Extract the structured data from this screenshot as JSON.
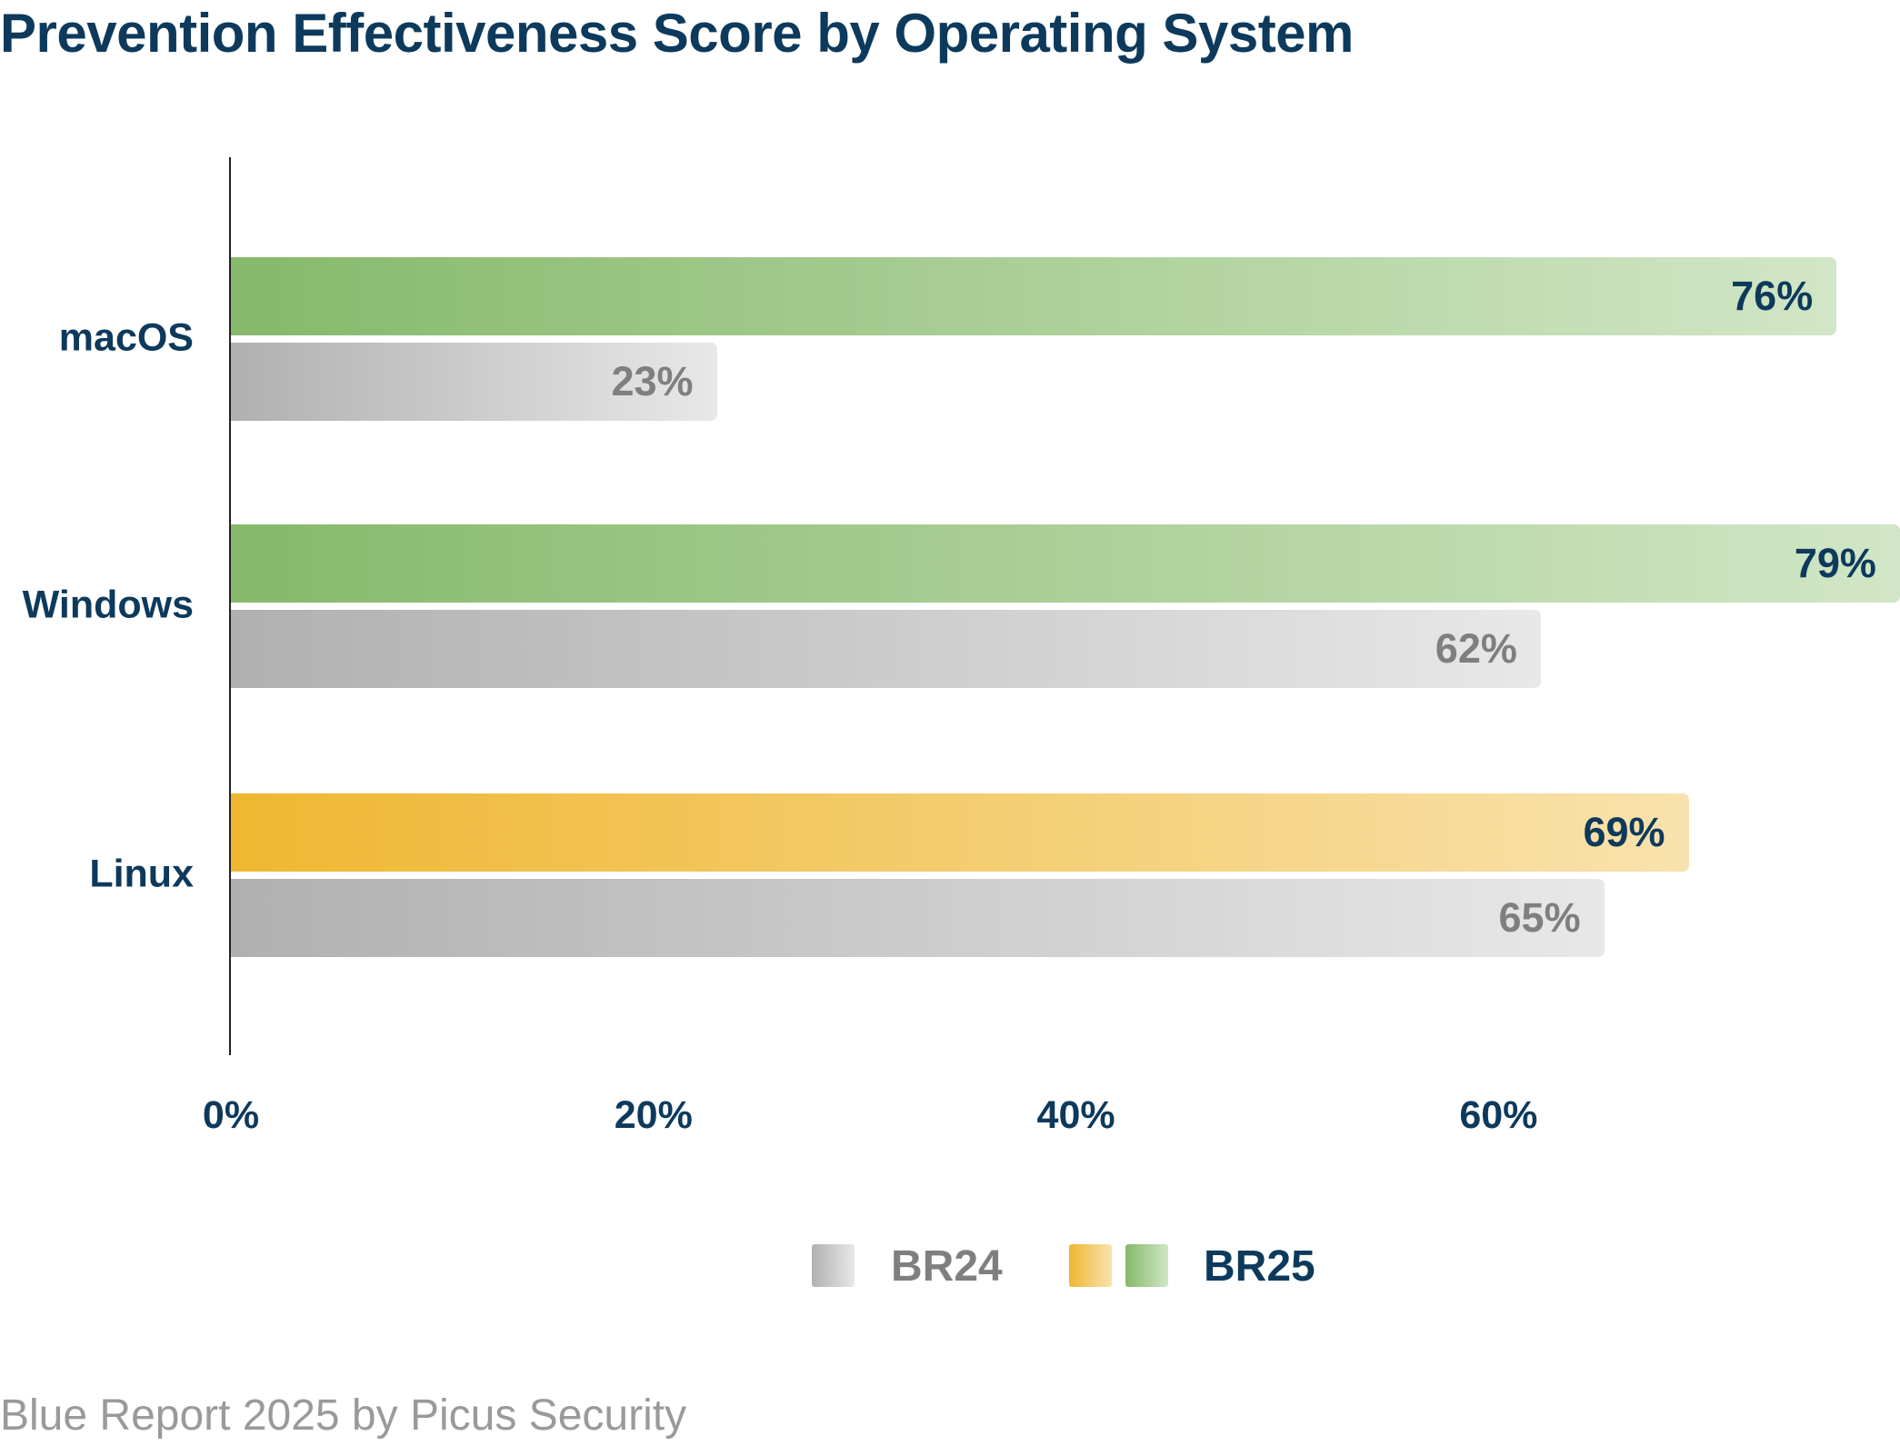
{
  "chart_data": {
    "type": "bar",
    "orientation": "horizontal",
    "title": "Prevention Effectiveness Score by Operating System",
    "categories": [
      "macOS",
      "Windows",
      "Linux"
    ],
    "series": [
      {
        "name": "BR25",
        "values": [
          76,
          79,
          69
        ],
        "labels": [
          "76%",
          "79%",
          "69%"
        ],
        "colors": [
          "#86b96a",
          "#86b96a",
          "#efb731"
        ]
      },
      {
        "name": "BR24",
        "values": [
          23,
          62,
          65
        ],
        "labels": [
          "23%",
          "62%",
          "65%"
        ],
        "colors": [
          "#b0b0b0",
          "#b0b0b0",
          "#b0b0b0"
        ]
      }
    ],
    "xticks": [
      0,
      20,
      40,
      60
    ],
    "xtick_labels": [
      "0%",
      "20%",
      "40%",
      "60%"
    ],
    "xlim": [
      0,
      79
    ],
    "xlabel": "",
    "ylabel": "",
    "grid": false,
    "legend": {
      "position": "bottom-center",
      "entries": [
        "BR24",
        "BR25"
      ]
    }
  },
  "footer": "Blue Report 2025 by Picus Security",
  "colors": {
    "navy": "#0d3a5c",
    "green": "#86b96a",
    "yellow": "#efb731",
    "gray": "#b0b0b0"
  }
}
